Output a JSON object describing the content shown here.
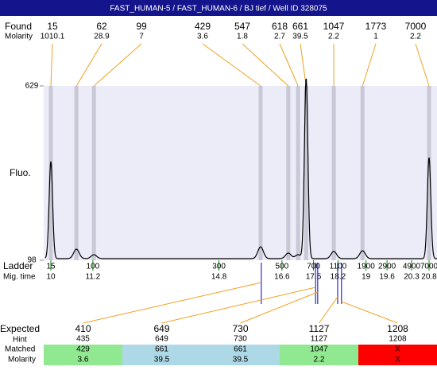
{
  "header": "FAST_HUMAN-5 / FAST_HUMAN-6 / BJ tief / Well ID 328075",
  "found": {
    "label": "Found",
    "molarity_label": "Molarity",
    "line_color": "#f0a020",
    "band_color": "#c8c8d6",
    "peaks": [
      {
        "size": 15,
        "molarity": 1010.1,
        "time": 10
      },
      {
        "size": 62,
        "molarity": 28.9,
        "time": 10.73
      },
      {
        "size": 99,
        "molarity": 7,
        "time": 11.23
      },
      {
        "size": 429,
        "molarity": 3.6,
        "time": 15.99
      },
      {
        "size": 547,
        "molarity": 1.8,
        "time": 16.78
      },
      {
        "size": 618,
        "molarity": 2.7,
        "time": 17.06
      },
      {
        "size": 661,
        "molarity": 39.5,
        "time": 17.29
      },
      {
        "size": 1047,
        "molarity": 2.2,
        "time": 18.08
      },
      {
        "size": 1773,
        "molarity": 1,
        "time": 18.9
      },
      {
        "size": 7000,
        "molarity": 2.2,
        "time": 20.8
      }
    ]
  },
  "plot": {
    "ylabel": "Fluo.",
    "ylim": [
      98,
      629
    ],
    "yticks": [
      98,
      629
    ],
    "background": "#ececf8",
    "trace_color": "#000000",
    "trace": [
      {
        "time": 10,
        "height": 394
      },
      {
        "time": 10.73,
        "height": 127
      },
      {
        "time": 11.23,
        "height": 110
      },
      {
        "time": 15.99,
        "height": 134
      },
      {
        "time": 16.78,
        "height": 115
      },
      {
        "time": 17.06,
        "height": 110
      },
      {
        "time": 17.29,
        "height": 648
      },
      {
        "time": 18.08,
        "height": 120
      },
      {
        "time": 18.9,
        "height": 122
      },
      {
        "time": 20.8,
        "height": 406
      }
    ]
  },
  "ladder": {
    "label": "Ladder",
    "time_label": "Mig. time",
    "color": "#108010",
    "sizes": [
      15,
      100,
      300,
      500,
      700,
      1100,
      1900,
      2900,
      4900,
      7000
    ],
    "times": [
      10,
      11.2,
      14.8,
      16.6,
      17.5,
      18.2,
      19,
      19.6,
      20.3,
      20.8
    ]
  },
  "expected": {
    "label": "Expected",
    "hint_label": "Hint",
    "matched_label": "Matched",
    "molarity_label": "Molarity",
    "marker_color": "#0000c0",
    "columns": [
      {
        "expected": 410,
        "hint": 435,
        "matched": 429,
        "molarity": 3.6,
        "color": "#90e890",
        "time": 16.01
      },
      {
        "expected": 649,
        "hint": 649,
        "matched": 661,
        "molarity": 39.5,
        "color": "#add8e6",
        "time": 17.56
      },
      {
        "expected": 730,
        "hint": 730,
        "matched": 661,
        "molarity": 39.5,
        "color": "#add8e6",
        "time": 17.62
      },
      {
        "expected": 1127,
        "hint": 1127,
        "matched": 1047,
        "molarity": 2.2,
        "color": "#90e890",
        "time": 18.19
      },
      {
        "expected": 1208,
        "hint": 1208,
        "matched": "X",
        "molarity": "X",
        "color": "#ff0000",
        "time": 18.3
      }
    ]
  }
}
